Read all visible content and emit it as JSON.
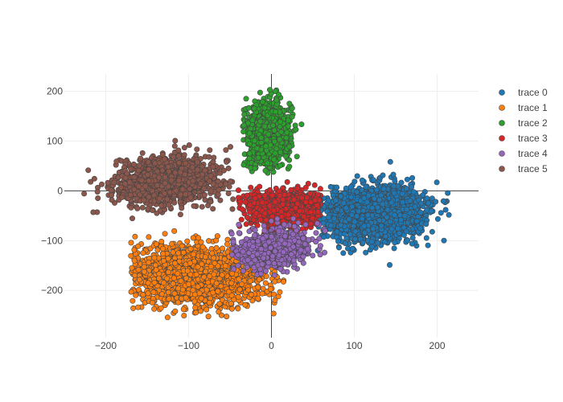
{
  "chart_data": {
    "type": "scatter",
    "title": "",
    "xlabel": "",
    "ylabel": "",
    "xlim": [
      -250,
      250
    ],
    "ylim": [
      -295,
      235
    ],
    "x_ticks": [
      -200,
      -100,
      0,
      100,
      200
    ],
    "x_tick_labels": [
      "−200",
      "−100",
      "0",
      "100",
      "200"
    ],
    "y_ticks": [
      -200,
      -100,
      0,
      100,
      200
    ],
    "y_tick_labels": [
      "−200",
      "−100",
      "0",
      "100",
      "200"
    ],
    "grid": true,
    "zero_lines": true,
    "legend_position": "top-right",
    "marker_outline": "#444444",
    "series": [
      {
        "name": "trace 0",
        "color": "#1f77b4",
        "center": [
          125,
          -45
        ],
        "spread": [
          30,
          27
        ],
        "rotation_deg": 18,
        "count": 1800,
        "bounds": {
          "x": [
            55,
            220
          ],
          "y": [
            -155,
            90
          ]
        }
      },
      {
        "name": "trace 1",
        "color": "#ff7f0e",
        "center": [
          -95,
          -170
        ],
        "spread": [
          42,
          28
        ],
        "rotation_deg": -10,
        "count": 1800,
        "bounds": {
          "x": [
            -170,
            20
          ],
          "y": [
            -262,
            -80
          ]
        }
      },
      {
        "name": "trace 2",
        "color": "#2ca02c",
        "center": [
          -5,
          115
        ],
        "spread": [
          14,
          34
        ],
        "rotation_deg": 0,
        "count": 900,
        "bounds": {
          "x": [
            -35,
            40
          ],
          "y": [
            35,
            205
          ]
        }
      },
      {
        "name": "trace 3",
        "color": "#d62728",
        "center": [
          15,
          -35
        ],
        "spread": [
          22,
          18
        ],
        "rotation_deg": 0,
        "count": 1000,
        "bounds": {
          "x": [
            -45,
            60
          ],
          "y": [
            -100,
            45
          ]
        }
      },
      {
        "name": "trace 4",
        "color": "#9467bd",
        "center": [
          5,
          -115
        ],
        "spread": [
          22,
          17
        ],
        "rotation_deg": 35,
        "count": 1000,
        "bounds": {
          "x": [
            -50,
            65
          ],
          "y": [
            -175,
            -45
          ]
        }
      },
      {
        "name": "trace 5",
        "color": "#8c564b",
        "center": [
          -125,
          20
        ],
        "spread": [
          32,
          24
        ],
        "rotation_deg": 15,
        "count": 1200,
        "bounds": {
          "x": [
            -230,
            -45
          ],
          "y": [
            -58,
            125
          ]
        }
      }
    ]
  }
}
